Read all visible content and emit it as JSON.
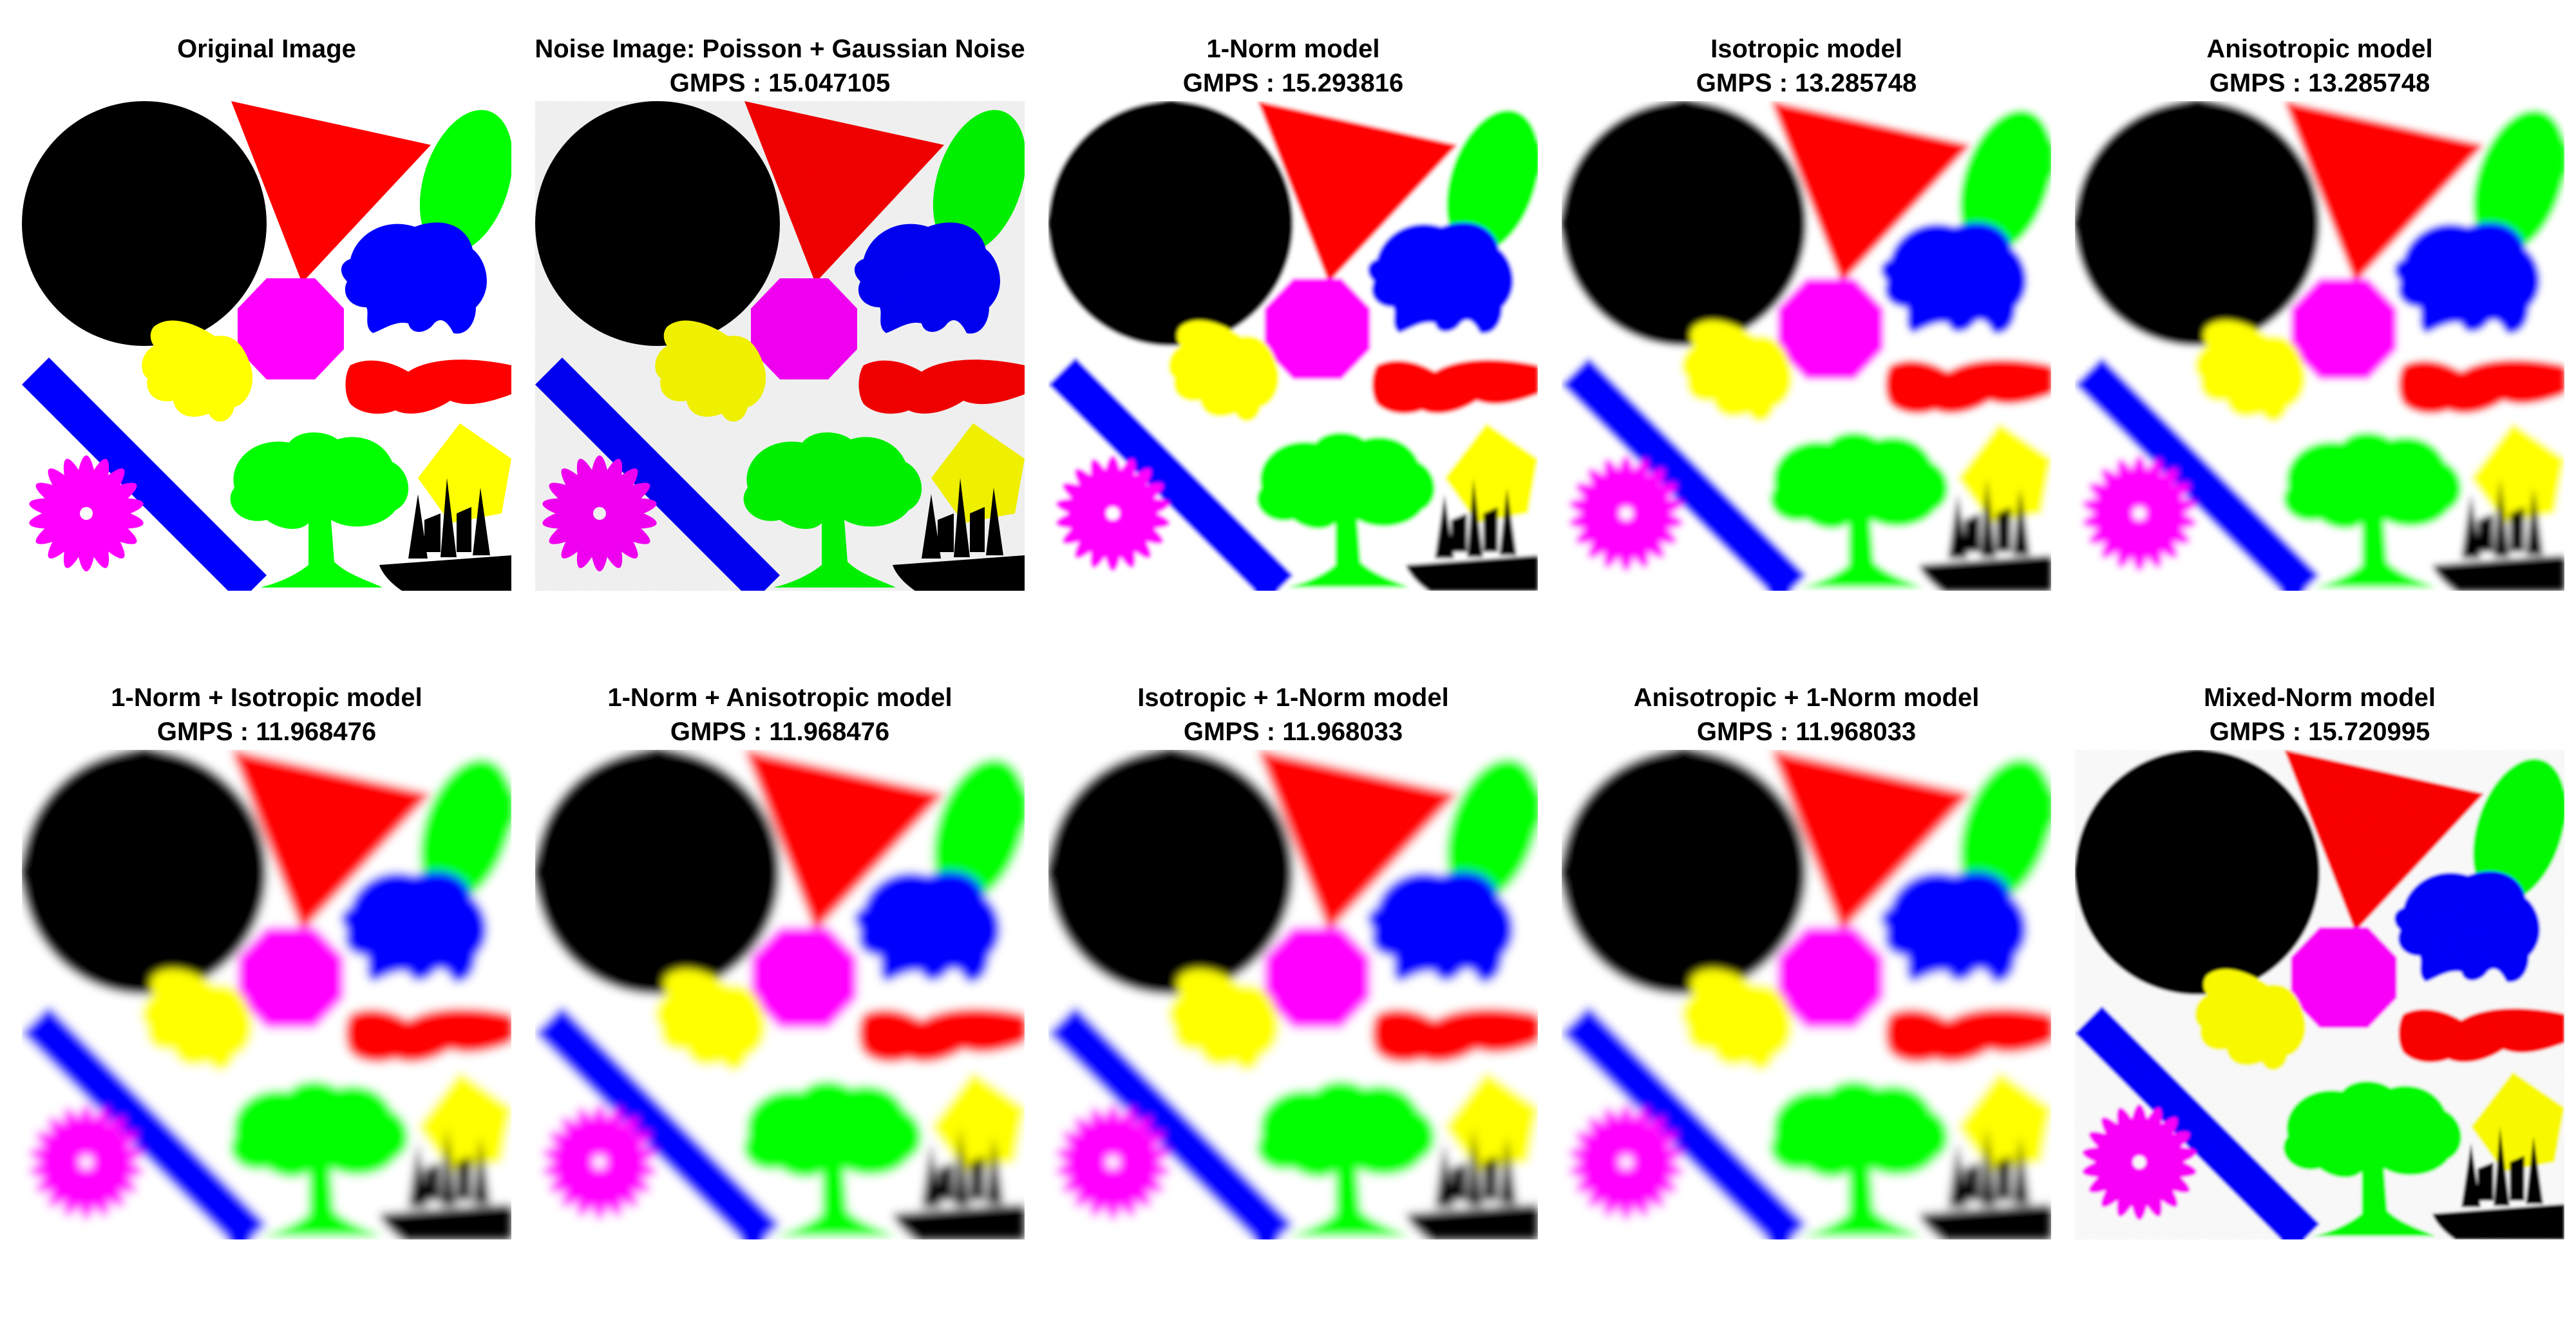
{
  "panels": [
    {
      "title": "Original Image",
      "subtitle": "",
      "style": "sharp"
    },
    {
      "title": "Noise Image: Poisson + Gaussian Noise",
      "subtitle": "GMPS : 15.047105",
      "style": "noisy"
    },
    {
      "title": "1-Norm model",
      "subtitle": "GMPS : 15.293816",
      "style": "blur-light"
    },
    {
      "title": "Isotropic model",
      "subtitle": "GMPS : 13.285748",
      "style": "blur-medium"
    },
    {
      "title": "Anisotropic model",
      "subtitle": "GMPS : 13.285748",
      "style": "blur-medium"
    },
    {
      "title": "1-Norm + Isotropic model",
      "subtitle": "GMPS : 11.968476",
      "style": "blur-heavy"
    },
    {
      "title": "1-Norm + Anisotropic model",
      "subtitle": "GMPS : 11.968476",
      "style": "blur-heavy"
    },
    {
      "title": "Isotropic + 1-Norm model",
      "subtitle": "GMPS : 11.968033",
      "style": "blur-heavy"
    },
    {
      "title": "Anisotropic + 1-Norm model",
      "subtitle": "GMPS : 11.968033",
      "style": "blur-heavy"
    },
    {
      "title": "Mixed-Norm model",
      "subtitle": "GMPS : 15.720995",
      "style": "grainy"
    }
  ],
  "colors": {
    "black": "#000000",
    "red": "#ff0000",
    "green": "#00ff00",
    "blue": "#0000ff",
    "magenta": "#ff00ff",
    "yellow": "#ffff00"
  }
}
